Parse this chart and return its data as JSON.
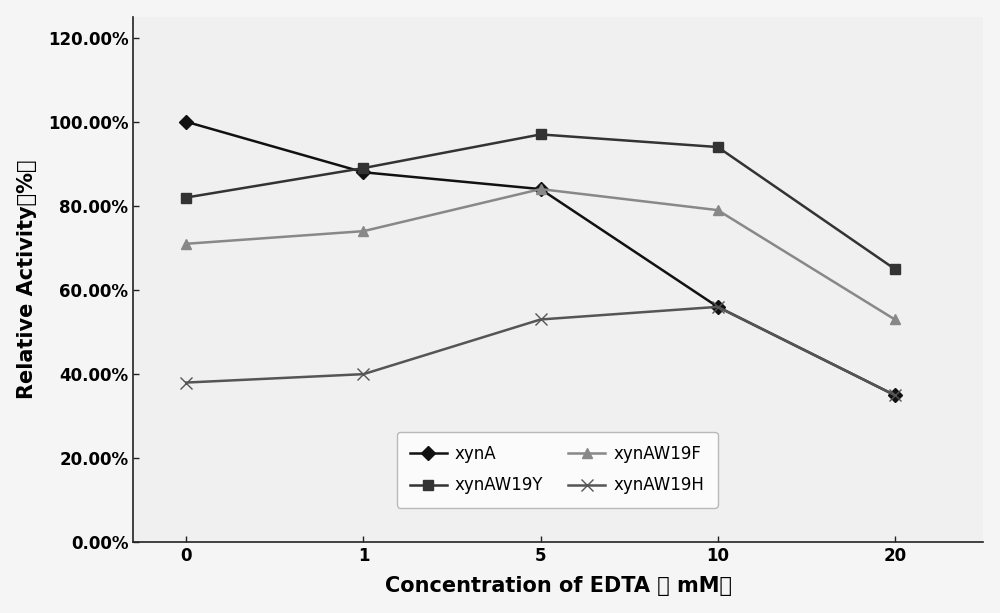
{
  "x_positions": [
    0,
    1,
    2,
    3,
    4
  ],
  "x_labels": [
    "0",
    "1",
    "5",
    "10",
    "20"
  ],
  "series": [
    {
      "key": "xynA",
      "values": [
        1.0,
        0.88,
        0.84,
        0.56,
        0.35
      ],
      "color": "#111111",
      "marker": "D",
      "markersize": 7,
      "linewidth": 1.8,
      "label": "xynA"
    },
    {
      "key": "xynAW19Y",
      "values": [
        0.82,
        0.89,
        0.97,
        0.94,
        0.65
      ],
      "color": "#333333",
      "marker": "s",
      "markersize": 7,
      "linewidth": 1.8,
      "label": "xynAW19Y"
    },
    {
      "key": "xynAW19F",
      "values": [
        0.71,
        0.74,
        0.84,
        0.79,
        0.53
      ],
      "color": "#888888",
      "marker": "^",
      "markersize": 7,
      "linewidth": 1.8,
      "label": "xynAW19F"
    },
    {
      "key": "xynAW19H",
      "values": [
        0.38,
        0.4,
        0.53,
        0.56,
        0.35
      ],
      "color": "#555555",
      "marker": "x",
      "markersize": 8,
      "linewidth": 1.8,
      "label": "xynAW19H"
    }
  ],
  "xlabel": "Concentration of EDTA （ mM）",
  "ylabel": "Relative Activity（%）",
  "xlim": [
    -0.3,
    4.5
  ],
  "ylim": [
    0.0,
    1.25
  ],
  "yticks": [
    0.0,
    0.2,
    0.4,
    0.6,
    0.8,
    1.0,
    1.2
  ],
  "ytick_labels": [
    "0.00%",
    "20.00%",
    "40.00%",
    "60.00%",
    "80.00%",
    "100.00%",
    "120.00%"
  ],
  "background_color": "#f5f5f5",
  "plot_bg_color": "#f0f0f0",
  "tick_fontsize": 12,
  "axis_label_fontsize": 15,
  "legend_fontsize": 12
}
